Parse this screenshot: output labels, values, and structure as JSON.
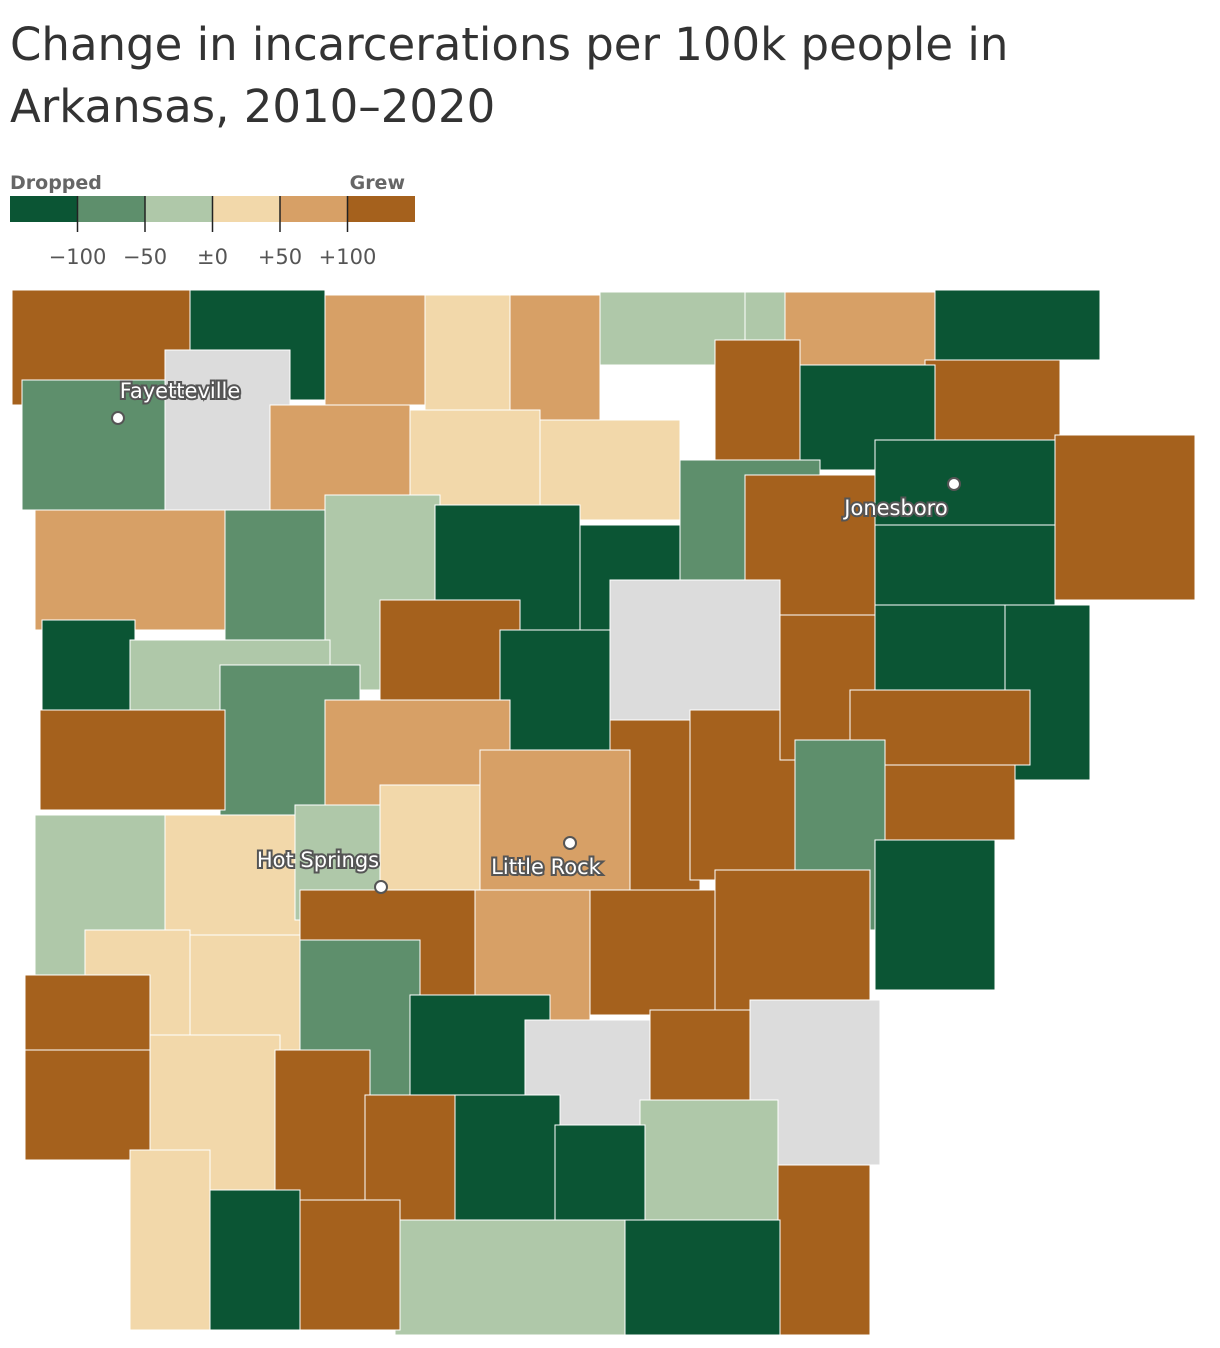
{
  "title": "Change in incarcerations per 100k people in Arkansas, 2010–2020",
  "legend": {
    "left_label": "Dropped",
    "right_label": "Grew",
    "colors": [
      "#0b5534",
      "#5e8f6c",
      "#afc8a9",
      "#f2d8aa",
      "#d7a066",
      "#a5611d"
    ],
    "ticks": [
      {
        "value": -100,
        "label": "−100"
      },
      {
        "value": -50,
        "label": "−50"
      },
      {
        "value": 0,
        "label": "±0"
      },
      {
        "value": 50,
        "label": "+50"
      },
      {
        "value": 100,
        "label": "+100"
      }
    ]
  },
  "no_data_color": "#dcdcdc",
  "counties": [
    5,
    0,
    4,
    3,
    4,
    2,
    2,
    4,
    0,
    5,
    0,
    5,
    3,
    1,
    null,
    4,
    3,
    4,
    0,
    1,
    2,
    0,
    0,
    1,
    0,
    5,
    0,
    5,
    null,
    5,
    0,
    2,
    1,
    5,
    4,
    5,
    5,
    0,
    0,
    5,
    5,
    5,
    1,
    0,
    2,
    3,
    2,
    3,
    4,
    5,
    5,
    4,
    5,
    1,
    3,
    3,
    5,
    5,
    3,
    5,
    5,
    0,
    null,
    5,
    null,
    2,
    0,
    0,
    5,
    0,
    2,
    5,
    0,
    3
  ],
  "cities": [
    {
      "label": "Fayetteville"
    },
    {
      "label": "Jonesboro"
    },
    {
      "label": "Little Rock"
    },
    {
      "label": "Hot Springs"
    }
  ]
}
